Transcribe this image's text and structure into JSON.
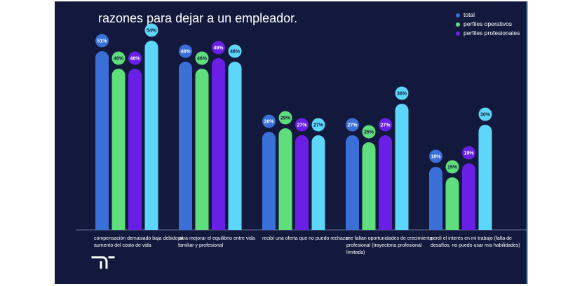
{
  "title": "razones para dejar a un empleador.",
  "colors": {
    "background": "#13193d",
    "total": "#3a6fd8",
    "operativos": "#5ede7c",
    "profesionales": "#6a1fe6",
    "accent": "#5cd6fa"
  },
  "logo_icon": "randstad-logo",
  "chart_data": {
    "type": "bar",
    "title": "razones para dejar a un empleador.",
    "categories": [
      "compensación demasiado baja debido al aumento del costo de vida",
      "para mejorar el equilibrio entre vida familiar y profesional",
      "recibí una oferta que no puedo rechazar",
      "me faltan oportunidades de crecimiento profesional (trayectoria profesional limitada)",
      "perdí el interés en mi trabajo (falta de desafíos, no puedo usar mis habilidades)"
    ],
    "series": [
      {
        "name": "total",
        "color": "#3a6fd8",
        "values": [
          51,
          48,
          28,
          27,
          18
        ]
      },
      {
        "name": "perfiles operativos",
        "color": "#5ede7c",
        "values": [
          46,
          46,
          29,
          25,
          15
        ]
      },
      {
        "name": "perfiles profesionales",
        "color": "#6a1fe6",
        "values": [
          46,
          49,
          27,
          27,
          19
        ]
      },
      {
        "name": "",
        "color": "#5cd6fa",
        "values": [
          54,
          48,
          27,
          36,
          30
        ]
      }
    ],
    "value_suffix": "%",
    "ylim": [
      0,
      60
    ],
    "legend_position": "top-right",
    "grid": false
  }
}
